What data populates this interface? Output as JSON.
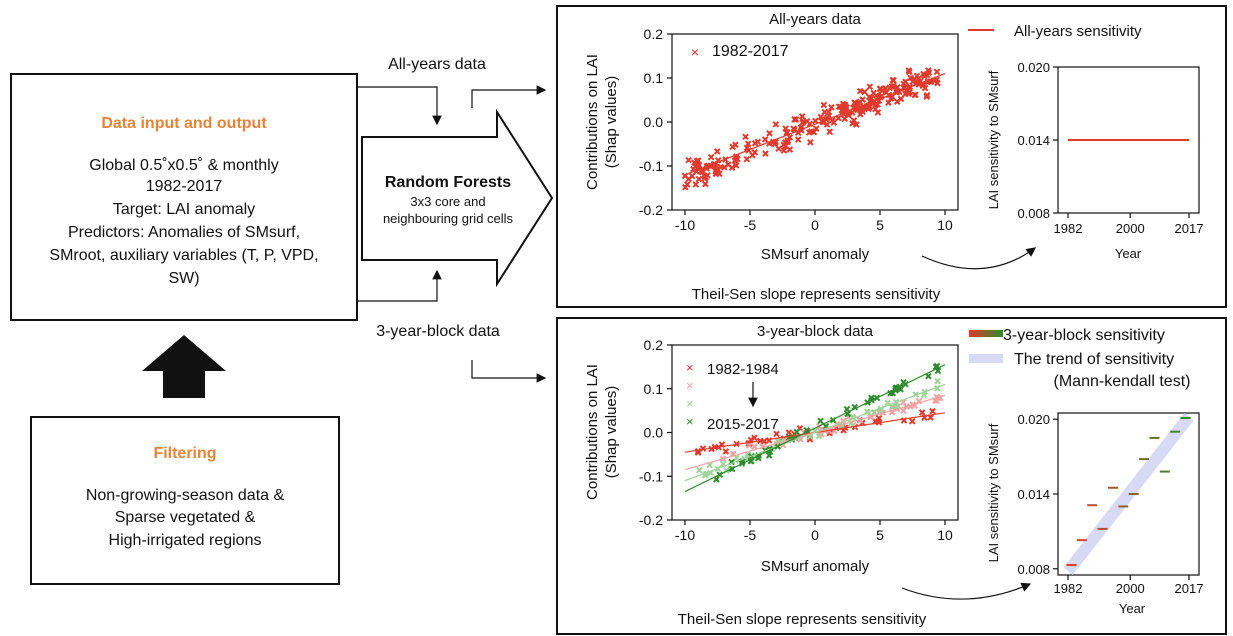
{
  "left": {
    "input_box": {
      "title": "Data input and output",
      "lines": [
        "Global 0.5˚x0.5˚ & monthly",
        "1982-2017",
        "Target: LAI anomaly",
        "Predictors: Anomalies of SMsurf,",
        "SMroot, auxiliary variables (T, P, VPD,",
        "SW)"
      ]
    },
    "filter_box": {
      "title": "Filtering",
      "lines": [
        "Non-growing-season data &",
        "Sparse vegetated &",
        "High-irrigated regions"
      ]
    }
  },
  "flow": {
    "all_years_label": "All-years data",
    "block_label": "3-year-block data",
    "rf_title": "Random Forests",
    "rf_lines": [
      "3x3 core and",
      "neighbouring grid cells"
    ]
  },
  "colors": {
    "red": "#e03a2e",
    "pink": "#f2a3a3",
    "light_green": "#9fd39a",
    "green": "#2e8b2e",
    "trend_band": "#d8daf5"
  },
  "top_panel": {
    "footer": "Theil-Sen slope represents sensitivity",
    "scatter": {
      "title": "All-years data",
      "legend": "1982-2017",
      "xlabel": "SMsurf anomaly",
      "ylabel_line1": "Contributions on LAI",
      "ylabel_line2": "(Shap values)"
    },
    "sensitivity": {
      "legend": "All-years sensitivity",
      "xlabel": "Year",
      "ylabel": "LAI sensitivity to SMsurf"
    }
  },
  "bottom_panel": {
    "footer": "Theil-Sen slope represents sensitivity",
    "scatter": {
      "title": "3-year-block data",
      "legend_first": "1982-1984",
      "legend_last": "2015-2017",
      "xlabel": "SMsurf anomaly",
      "ylabel_line1": "Contributions on LAI",
      "ylabel_line2": "(Shap values)"
    },
    "sensitivity": {
      "legend_block": "3-year-block sensitivity",
      "legend_trend_line1": "The trend of sensitivity",
      "legend_trend_line2": "(Mann-kendall test)",
      "xlabel": "Year",
      "ylabel": "LAI sensitivity to SMsurf"
    }
  },
  "chart_data": [
    {
      "type": "scatter",
      "title": "All-years data",
      "xlabel": "SMsurf anomaly",
      "ylabel": "Contributions on LAI (Shap values)",
      "xlim": [
        -11,
        11
      ],
      "ylim": [
        -0.2,
        0.2
      ],
      "xticks": [
        "-10",
        "-5",
        "0",
        "5",
        "10"
      ],
      "yticks": [
        "-0.2",
        "-0.1",
        "0.0",
        "0.1",
        "0.2"
      ],
      "series": [
        {
          "name": "1982-2017",
          "trend_slope": 0.0115,
          "trend_intercept": -0.005
        }
      ]
    },
    {
      "type": "line",
      "xlabel": "Year",
      "ylabel": "LAI sensitivity to SMsurf",
      "xlim": [
        1982,
        2017
      ],
      "ylim": [
        0.008,
        0.02
      ],
      "xticks": [
        "1982",
        "2000",
        "2017"
      ],
      "yticks": [
        "0.008",
        "0.014",
        "0.020"
      ],
      "series": [
        {
          "name": "All-years sensitivity",
          "x": [
            1982,
            2017
          ],
          "y": [
            0.014,
            0.014
          ]
        }
      ]
    },
    {
      "type": "scatter",
      "title": "3-year-block data",
      "xlabel": "SMsurf anomaly",
      "ylabel": "Contributions on LAI (Shap values)",
      "xlim": [
        -11,
        11
      ],
      "ylim": [
        -0.2,
        0.2
      ],
      "xticks": [
        "-10",
        "-5",
        "0",
        "5",
        "10"
      ],
      "yticks": [
        "-0.2",
        "-0.1",
        "0.0",
        "0.1",
        "0.2"
      ],
      "series": [
        {
          "name": "1982-1984",
          "trend_slope": 0.0045,
          "trend_intercept": 0.0
        },
        {
          "name": "",
          "trend_slope": 0.0085,
          "trend_intercept": 0.0
        },
        {
          "name": "",
          "trend_slope": 0.011,
          "trend_intercept": 0.0
        },
        {
          "name": "2015-2017",
          "trend_slope": 0.0145,
          "trend_intercept": 0.01
        }
      ]
    },
    {
      "type": "line",
      "xlabel": "Year",
      "ylabel": "LAI sensitivity to SMsurf",
      "xlim": [
        1982,
        2017
      ],
      "ylim": [
        0.008,
        0.02
      ],
      "xticks": [
        "1982",
        "2000",
        "2017"
      ],
      "yticks": [
        "0.008",
        "0.014",
        "0.020"
      ],
      "series": [
        {
          "name": "3-year-block sensitivity",
          "x": [
            1983,
            1986,
            1989,
            1992,
            1995,
            1998,
            2001,
            2004,
            2007,
            2010,
            2013,
            2016
          ],
          "y": [
            0.0083,
            0.0103,
            0.0131,
            0.0112,
            0.0145,
            0.013,
            0.014,
            0.0168,
            0.0185,
            0.0158,
            0.019,
            0.0201
          ]
        },
        {
          "name": "The trend of sensitivity",
          "x": [
            1982,
            2017
          ],
          "y": [
            0.0078,
            0.0202
          ]
        }
      ]
    }
  ]
}
